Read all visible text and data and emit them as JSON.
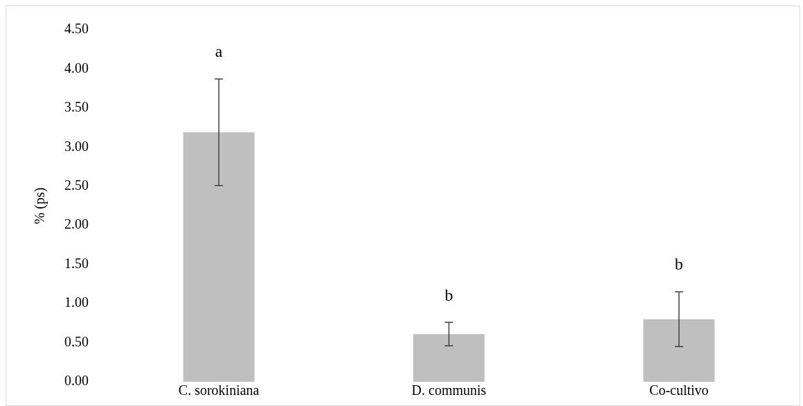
{
  "chart_data": {
    "type": "bar",
    "ylabel": "% (ps)",
    "categories": [
      "C. sorokiniana",
      "D. communis",
      "Co-cultivo"
    ],
    "values": [
      3.19,
      0.61,
      0.8
    ],
    "color": "#bfbfbf",
    "errors": [
      0.68,
      0.15,
      0.35
    ],
    "ylim": [
      0,
      4.5
    ],
    "yticks": [
      {
        "value": 0,
        "label": "0.00"
      },
      {
        "value": 0.5,
        "label": "0.50"
      },
      {
        "value": 1,
        "label": "1.00"
      },
      {
        "value": 1.5,
        "label": "1.50"
      },
      {
        "value": 2,
        "label": "2.00"
      },
      {
        "value": 2.5,
        "label": "2.50"
      },
      {
        "value": 3,
        "label": "3.00"
      },
      {
        "value": 3.5,
        "label": "3.50"
      },
      {
        "value": 4,
        "label": "4.00"
      },
      {
        "value": 4.5,
        "label": "4.50"
      }
    ],
    "grid": false,
    "legend": false,
    "annotations": [
      "a",
      "b",
      "b"
    ]
  }
}
